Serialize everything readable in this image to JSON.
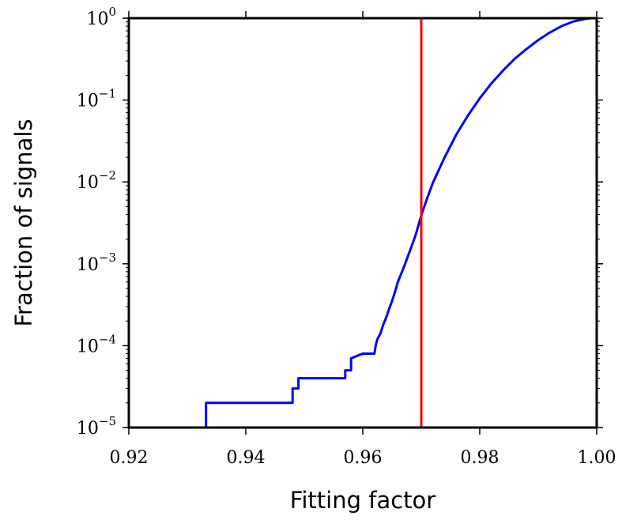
{
  "chart_data": {
    "type": "line",
    "xlabel": "Fitting factor",
    "ylabel": "Fraction of signals",
    "xlim": [
      0.92,
      1.0
    ],
    "ylim": [
      1e-05,
      1
    ],
    "yscale": "log",
    "grid": false,
    "x_ticks": [
      0.92,
      0.94,
      0.96,
      0.98,
      1.0
    ],
    "x_tick_labels": [
      "0.92",
      "0.94",
      "0.96",
      "0.98",
      "1.00"
    ],
    "y_ticks": [
      1e-05,
      0.0001,
      0.001,
      0.01,
      0.1,
      1
    ],
    "y_tick_labels": [
      {
        "base": "10",
        "exp": "−5"
      },
      {
        "base": "10",
        "exp": "−4"
      },
      {
        "base": "10",
        "exp": "−3"
      },
      {
        "base": "10",
        "exp": "−2"
      },
      {
        "base": "10",
        "exp": "−1"
      },
      {
        "base": "10",
        "exp": "0"
      }
    ],
    "series": [
      {
        "color": "#0000ff",
        "x": [
          0.9237,
          0.9332,
          0.9332,
          0.948,
          0.948,
          0.949,
          0.949,
          0.957,
          0.957,
          0.958,
          0.958,
          0.96,
          0.96,
          0.962,
          0.9622,
          0.9625,
          0.963,
          0.9635,
          0.964,
          0.9645,
          0.965,
          0.9655,
          0.966,
          0.967,
          0.968,
          0.969,
          0.97,
          0.971,
          0.972,
          0.974,
          0.976,
          0.978,
          0.98,
          0.982,
          0.984,
          0.986,
          0.988,
          0.99,
          0.992,
          0.994,
          0.996,
          0.998,
          0.999,
          1.0
        ],
        "values": [
          1e-05,
          1e-05,
          2e-05,
          2e-05,
          3e-05,
          3e-05,
          4e-05,
          4e-05,
          5e-05,
          5e-05,
          7e-05,
          8e-05,
          8e-05,
          8e-05,
          0.0001,
          0.00012,
          0.00014,
          0.00018,
          0.00022,
          0.00028,
          0.00035,
          0.00045,
          0.0006,
          0.0009,
          0.0014,
          0.0022,
          0.0039,
          0.0063,
          0.0098,
          0.02,
          0.038,
          0.065,
          0.105,
          0.16,
          0.23,
          0.32,
          0.42,
          0.54,
          0.67,
          0.8,
          0.91,
          0.98,
          1.0,
          1.0
        ]
      }
    ],
    "vline": {
      "x": 0.97,
      "color": "#ff0000"
    }
  }
}
